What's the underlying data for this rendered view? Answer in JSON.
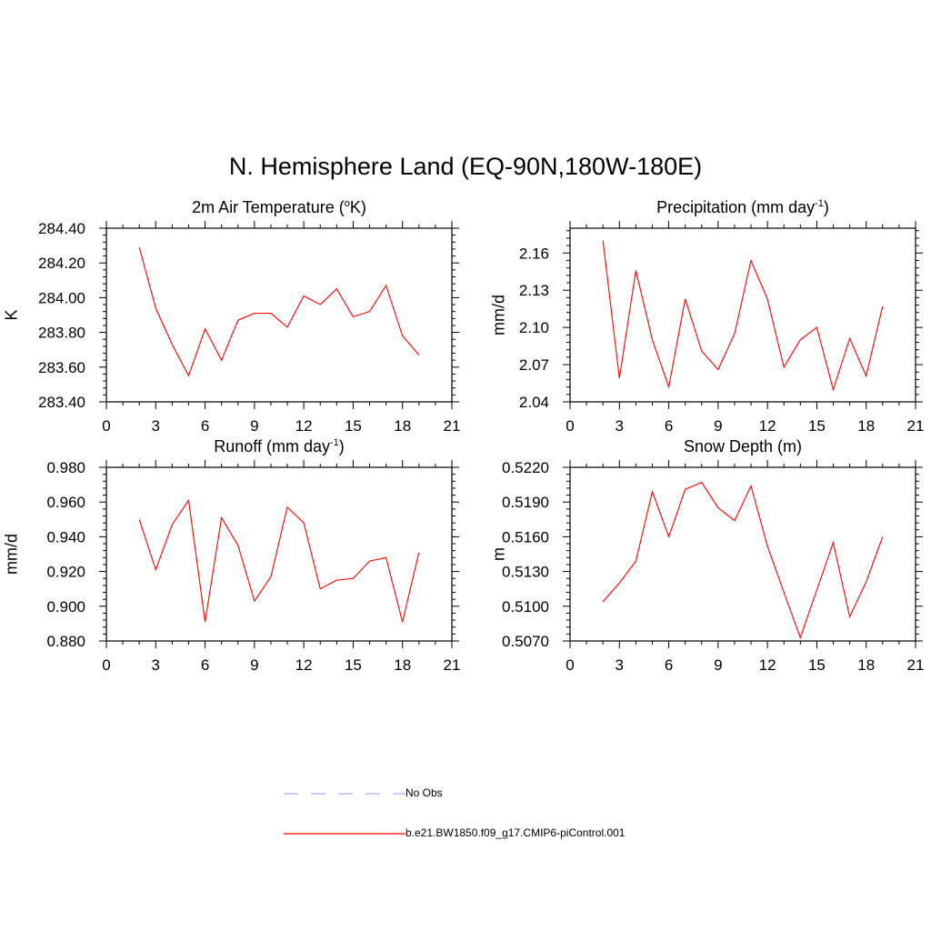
{
  "figure": {
    "title": "N. Hemisphere Land (EQ-90N,180W-180E)",
    "line_color": "#ff0000",
    "obs_color": "#aaaaee"
  },
  "legend": {
    "entries": [
      {
        "label": "No Obs",
        "style": "dashed",
        "color": "#aaaaee"
      },
      {
        "label": "b.e21.BW1850.f09_g17.CMIP6-piControl.001",
        "style": "solid",
        "color": "#ff0000"
      }
    ]
  },
  "chart_data": [
    {
      "type": "line",
      "title_main": "2m Air Temperature (",
      "title_sup": "o",
      "title_end": "K)",
      "ylabel": "K",
      "xlim": [
        0,
        21
      ],
      "ylim": [
        283.4,
        284.4
      ],
      "xticks": [
        "0",
        "3",
        "6",
        "9",
        "12",
        "15",
        "18",
        "21"
      ],
      "yticks": [
        "283.40",
        "283.60",
        "283.80",
        "284.00",
        "284.20",
        "284.40"
      ],
      "x": [
        2,
        3,
        4,
        5,
        6,
        7,
        8,
        9,
        10,
        11,
        12,
        13,
        14,
        15,
        16,
        17,
        18,
        19
      ],
      "series": [
        {
          "name": "b.e21.BW1850.f09_g17.CMIP6-piControl.001",
          "values": [
            284.29,
            283.94,
            283.73,
            283.55,
            283.82,
            283.64,
            283.87,
            283.91,
            283.91,
            283.83,
            284.01,
            283.96,
            284.05,
            283.89,
            283.92,
            284.07,
            283.78,
            283.67
          ]
        }
      ]
    },
    {
      "type": "line",
      "title_main": "Precipitation (mm day",
      "title_sup": "-1",
      "title_end": ")",
      "ylabel": "mm/d",
      "xlim": [
        0,
        21
      ],
      "ylim": [
        2.04,
        2.18
      ],
      "xticks": [
        "0",
        "3",
        "6",
        "9",
        "12",
        "15",
        "18",
        "21"
      ],
      "yticks": [
        "2.04",
        "2.07",
        "2.10",
        "2.13",
        "2.16"
      ],
      "x": [
        2,
        3,
        4,
        5,
        6,
        7,
        8,
        9,
        10,
        11,
        12,
        13,
        14,
        15,
        16,
        17,
        18,
        19
      ],
      "series": [
        {
          "name": "b.e21.BW1850.f09_g17.CMIP6-piControl.001",
          "values": [
            2.17,
            2.059,
            2.146,
            2.09,
            2.052,
            2.123,
            2.081,
            2.066,
            2.095,
            2.154,
            2.123,
            2.068,
            2.09,
            2.1,
            2.05,
            2.091,
            2.061,
            2.117
          ]
        }
      ]
    },
    {
      "type": "line",
      "title_main": "Runoff (mm day",
      "title_sup": "-1",
      "title_end": ")",
      "ylabel": "mm/d",
      "xlim": [
        0,
        21
      ],
      "ylim": [
        0.88,
        0.98
      ],
      "xticks": [
        "0",
        "3",
        "6",
        "9",
        "12",
        "15",
        "18",
        "21"
      ],
      "yticks": [
        "0.880",
        "0.900",
        "0.920",
        "0.940",
        "0.960",
        "0.980"
      ],
      "x": [
        2,
        3,
        4,
        5,
        6,
        7,
        8,
        9,
        10,
        11,
        12,
        13,
        14,
        15,
        16,
        17,
        18,
        19
      ],
      "series": [
        {
          "name": "b.e21.BW1850.f09_g17.CMIP6-piControl.001",
          "values": [
            0.95,
            0.921,
            0.947,
            0.961,
            0.891,
            0.951,
            0.935,
            0.903,
            0.917,
            0.957,
            0.948,
            0.91,
            0.915,
            0.916,
            0.926,
            0.928,
            0.891,
            0.931
          ]
        }
      ]
    },
    {
      "type": "line",
      "title_main": "Snow Depth (m)",
      "title_sup": "",
      "title_end": "",
      "ylabel": "m",
      "xlim": [
        0,
        21
      ],
      "ylim": [
        0.507,
        0.522
      ],
      "xticks": [
        "0",
        "3",
        "6",
        "9",
        "12",
        "15",
        "18",
        "21"
      ],
      "yticks": [
        "0.5070",
        "0.5100",
        "0.5130",
        "0.5160",
        "0.5190",
        "0.5220"
      ],
      "x": [
        2,
        3,
        4,
        5,
        6,
        7,
        8,
        9,
        10,
        11,
        12,
        13,
        14,
        15,
        16,
        17,
        18,
        19
      ],
      "series": [
        {
          "name": "b.e21.BW1850.f09_g17.CMIP6-piControl.001",
          "values": [
            0.5104,
            0.512,
            0.5139,
            0.5199,
            0.516,
            0.5201,
            0.5207,
            0.5185,
            0.5174,
            0.5204,
            0.5152,
            0.5112,
            0.5073,
            0.5114,
            0.5155,
            0.5091,
            0.5121,
            0.516
          ]
        }
      ]
    }
  ]
}
